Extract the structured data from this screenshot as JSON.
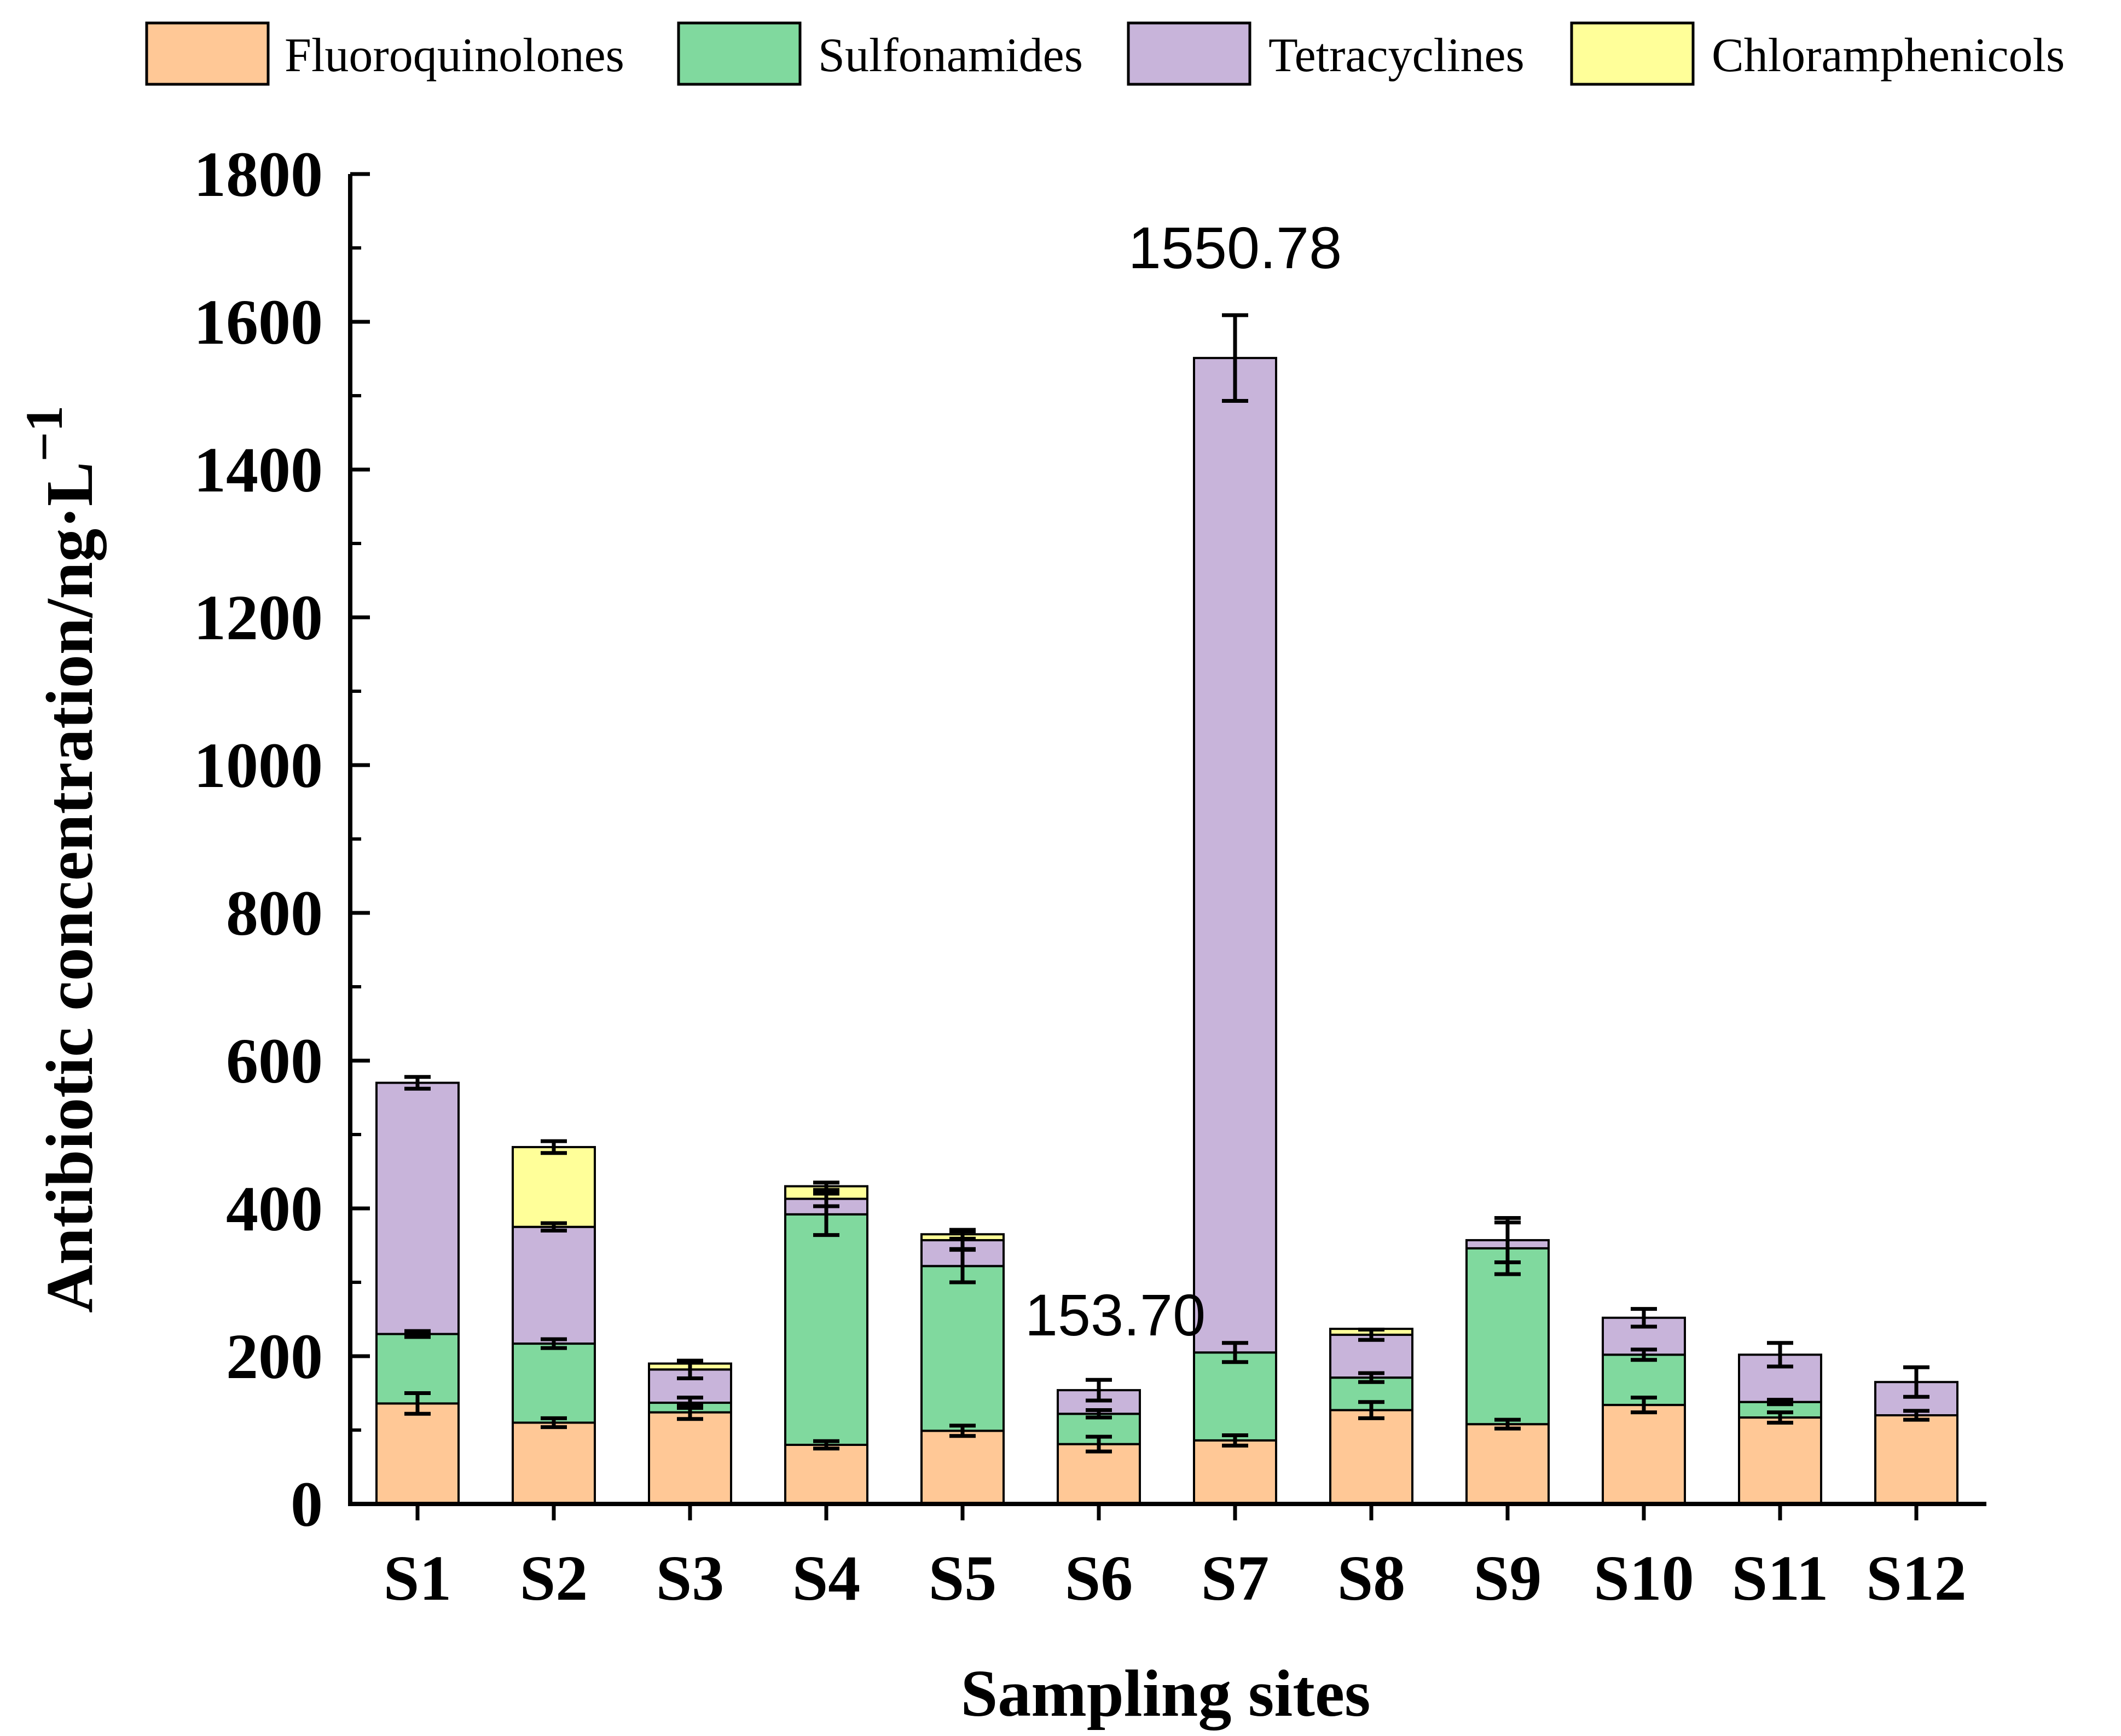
{
  "chart_data": {
    "type": "bar",
    "stacked": true,
    "title": "",
    "xlabel": "Sampling sites",
    "ylabel": "Antibiotic concentration/ng·L",
    "ylabel_superscript": "−1",
    "ylim": [
      0,
      1800
    ],
    "yticks": [
      "0",
      "200",
      "400",
      "600",
      "800",
      "1000",
      "1200",
      "1400",
      "1600",
      "1800"
    ],
    "ytick_values": [
      0,
      200,
      400,
      600,
      800,
      1000,
      1200,
      1400,
      1600,
      1800
    ],
    "legend_position": "top",
    "grid": false,
    "categories": [
      "S1",
      "S2",
      "S3",
      "S4",
      "S5",
      "S6",
      "S7",
      "S8",
      "S9",
      "S10",
      "S11",
      "S12"
    ],
    "series": [
      {
        "name": "Fluoroquinolones",
        "color": "#ffc896",
        "values": [
          136,
          110,
          124,
          80,
          99,
          81,
          86,
          127,
          108,
          134,
          117,
          120
        ],
        "errors": [
          14,
          6,
          9,
          5,
          7,
          10,
          7,
          11,
          6,
          10,
          7,
          6
        ]
      },
      {
        "name": "Sulfonamides",
        "color": "#80d99e",
        "values": [
          94,
          107,
          13,
          312,
          223,
          41,
          119,
          44,
          238,
          68,
          21,
          0
        ],
        "errors": [
          4,
          6,
          7,
          28,
          22,
          5,
          13,
          6,
          35,
          7,
          3,
          0
        ]
      },
      {
        "name": "Tetracyclines",
        "color": "#c8b4da",
        "values": [
          340,
          158,
          45,
          21,
          35,
          32,
          1346,
          58,
          11,
          50,
          64,
          45
        ],
        "errors": [
          8,
          5,
          12,
          10,
          12,
          14,
          58,
          7,
          30,
          12,
          16,
          20
        ]
      },
      {
        "name": "Chloramphenicols",
        "color": "#ffff99",
        "values": [
          0,
          108,
          8,
          17,
          8,
          0,
          0,
          8,
          0,
          0,
          0,
          0
        ],
        "errors": [
          0,
          8,
          0,
          5,
          6,
          0,
          0,
          0,
          0,
          0,
          0,
          0
        ]
      }
    ],
    "annotations": [
      {
        "text": "1550.78",
        "category": "S7",
        "value": 1550.78
      },
      {
        "text": "153.70",
        "category": "S6",
        "value": 153.7
      }
    ]
  }
}
